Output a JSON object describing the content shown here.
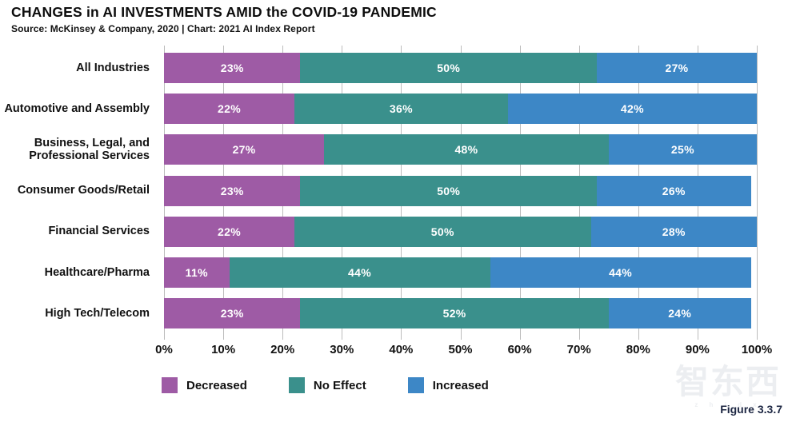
{
  "header": {
    "title": "CHANGES in AI INVESTMENTS AMID the COVID-19 PANDEMIC",
    "source_line": "Source: McKinsey & Company, 2020 | Chart: 2021 AI Index Report"
  },
  "chart_data": {
    "type": "bar",
    "variant": "horizontal-stacked",
    "title": "CHANGES in AI INVESTMENTS AMID the COVID-19 PANDEMIC",
    "categories": [
      "All Industries",
      "Automotive and Assembly",
      "Business, Legal, and Professional Services",
      "Consumer Goods/Retail",
      "Financial Services",
      "Healthcare/Pharma",
      "High Tech/Telecom"
    ],
    "series": [
      {
        "name": "Decreased",
        "color": "#9E5BA5",
        "values": [
          23,
          22,
          27,
          23,
          22,
          11,
          23
        ]
      },
      {
        "name": "No Effect",
        "color": "#3A908C",
        "values": [
          50,
          36,
          48,
          50,
          50,
          44,
          52
        ]
      },
      {
        "name": "Increased",
        "color": "#3D87C6",
        "values": [
          27,
          42,
          25,
          26,
          28,
          44,
          24
        ]
      }
    ],
    "value_suffix": "%",
    "xlim": [
      0,
      100
    ],
    "x_tick_labels": [
      "0%",
      "10%",
      "20%",
      "30%",
      "40%",
      "50%",
      "60%",
      "70%",
      "80%",
      "90%",
      "100%"
    ],
    "grid": "vertical",
    "legend_position": "bottom"
  },
  "footer": {
    "figure_label": "Figure 3.3.7",
    "watermark": "智东西",
    "watermark_sub": "z h i d x"
  },
  "colors": {
    "gridline": "#bcbcbc",
    "bar_text": "#ffffff",
    "figure_label_color": "#1c2642"
  }
}
